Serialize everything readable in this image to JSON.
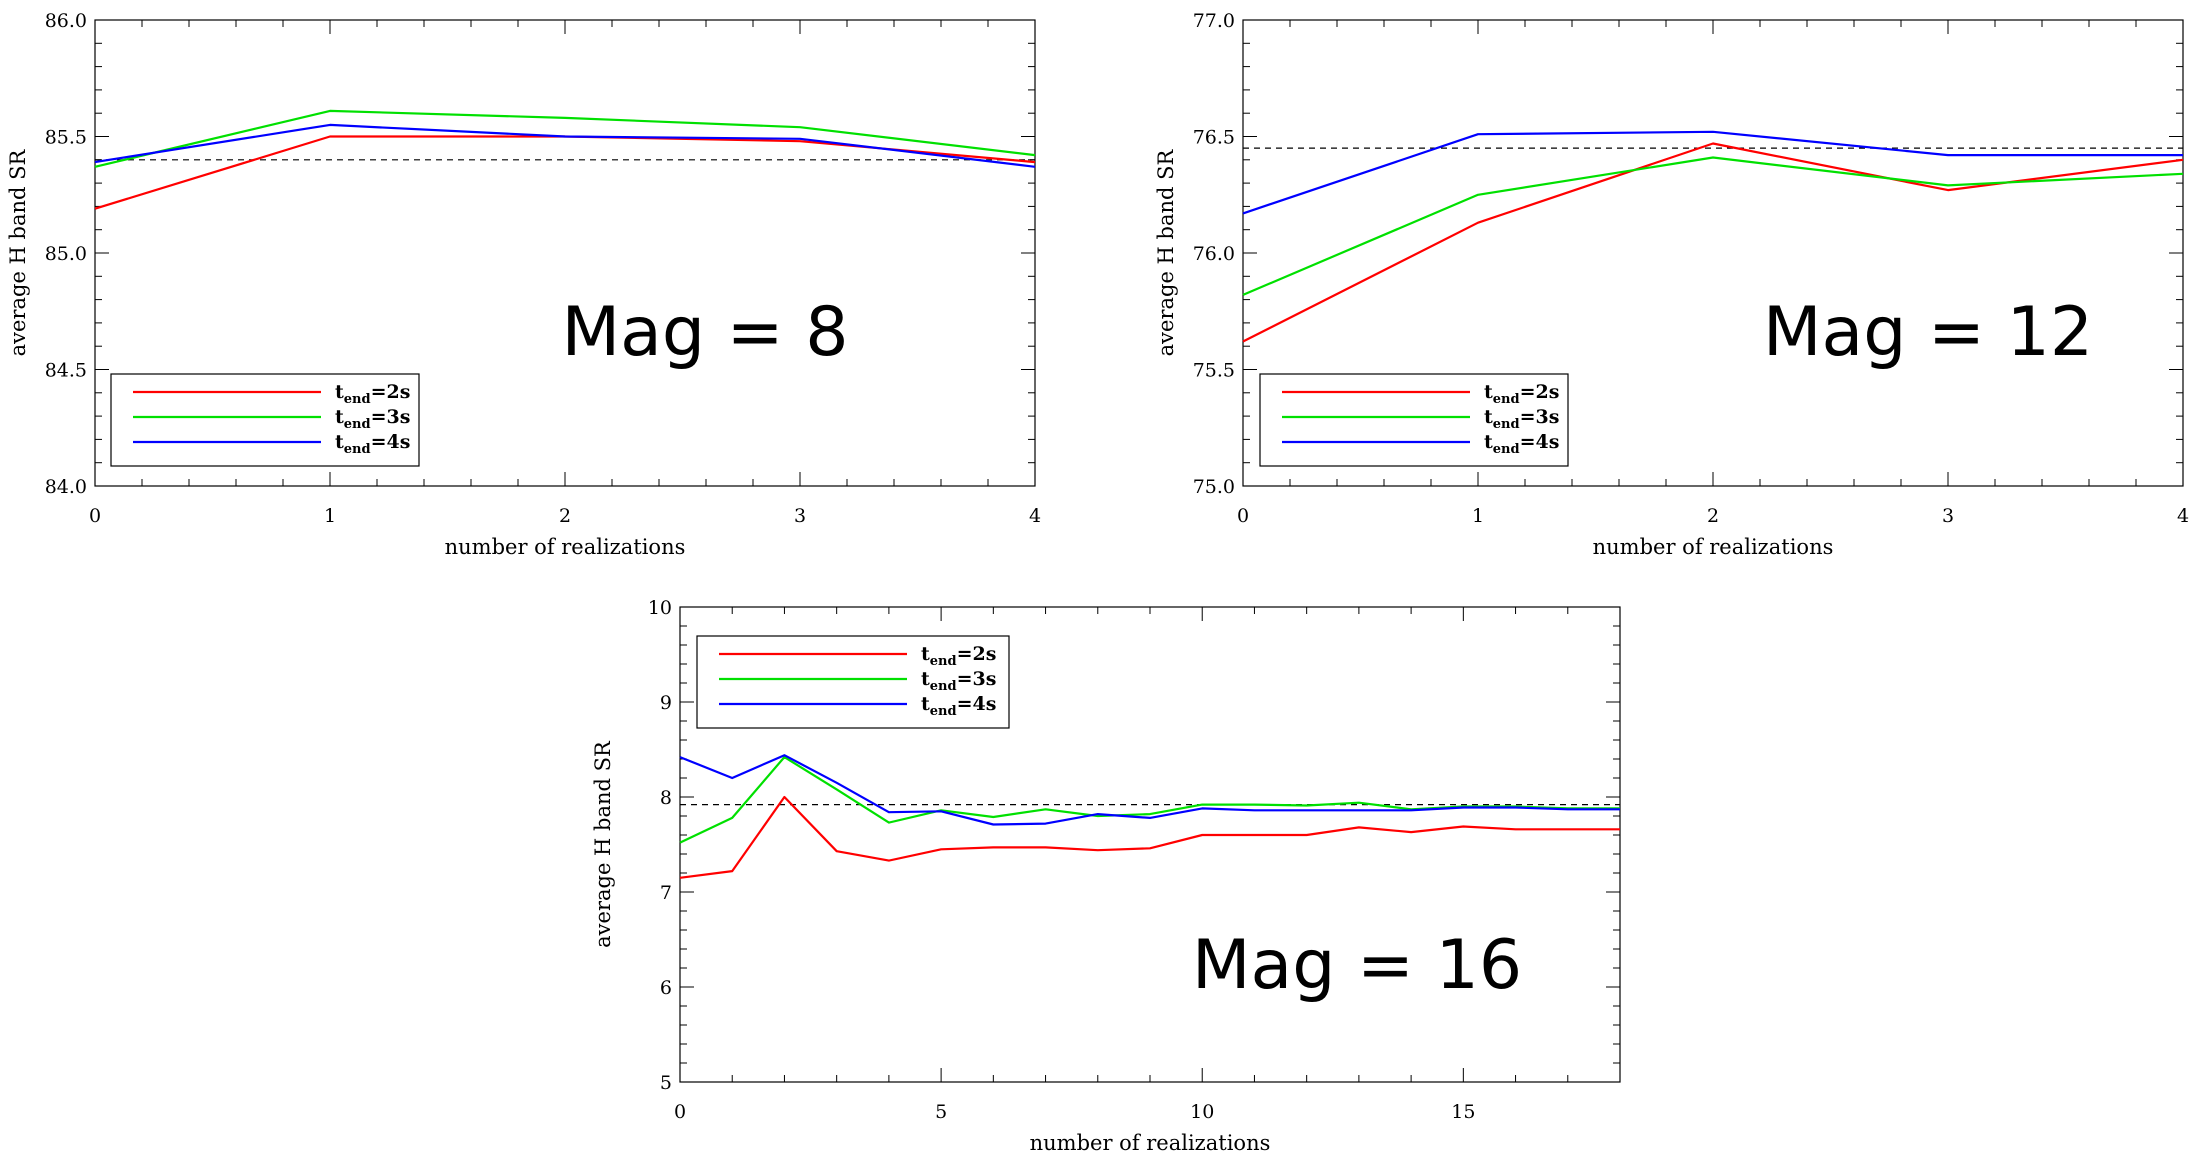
{
  "chart_data": [
    {
      "type": "line",
      "annotation": "Mag = 8",
      "xlabel": "number of realizations",
      "ylabel": "average H band SR",
      "xlim": [
        0,
        4
      ],
      "ylim": [
        84.0,
        86.0
      ],
      "x_ticks": [
        "0",
        "1",
        "2",
        "3",
        "4"
      ],
      "y_ticks": [
        "84.0",
        "84.5",
        "85.0",
        "85.5",
        "86.0"
      ],
      "reference_line": 85.4,
      "legend_position": "bottom-left",
      "series": [
        {
          "name": "t_end=2s",
          "color": "#ff0000",
          "x": [
            0,
            1,
            2,
            3,
            4
          ],
          "values": [
            85.19,
            85.5,
            85.5,
            85.48,
            85.39
          ]
        },
        {
          "name": "t_end=3s",
          "color": "#00e000",
          "x": [
            0,
            1,
            2,
            3,
            4
          ],
          "values": [
            85.37,
            85.61,
            85.58,
            85.54,
            85.42
          ]
        },
        {
          "name": "t_end=4s",
          "color": "#0000ff",
          "x": [
            0,
            1,
            2,
            3,
            4
          ],
          "values": [
            85.39,
            85.55,
            85.5,
            85.49,
            85.37
          ]
        }
      ]
    },
    {
      "type": "line",
      "annotation": "Mag = 12",
      "xlabel": "number of realizations",
      "ylabel": "average H band SR",
      "xlim": [
        0,
        4
      ],
      "ylim": [
        75.0,
        77.0
      ],
      "x_ticks": [
        "0",
        "1",
        "2",
        "3",
        "4"
      ],
      "y_ticks": [
        "75.0",
        "75.5",
        "76.0",
        "76.5",
        "77.0"
      ],
      "reference_line": 76.45,
      "legend_position": "bottom-left",
      "series": [
        {
          "name": "t_end=2s",
          "color": "#ff0000",
          "x": [
            0,
            1,
            2,
            3,
            4
          ],
          "values": [
            75.62,
            76.13,
            76.47,
            76.27,
            76.4
          ]
        },
        {
          "name": "t_end=3s",
          "color": "#00e000",
          "x": [
            0,
            1,
            2,
            3,
            4
          ],
          "values": [
            75.82,
            76.25,
            76.41,
            76.29,
            76.34
          ]
        },
        {
          "name": "t_end=4s",
          "color": "#0000ff",
          "x": [
            0,
            1,
            2,
            3,
            4
          ],
          "values": [
            76.17,
            76.51,
            76.52,
            76.42,
            76.42
          ]
        }
      ]
    },
    {
      "type": "line",
      "annotation": "Mag = 16",
      "xlabel": "number of realizations",
      "ylabel": "average H band SR",
      "xlim": [
        0,
        18
      ],
      "ylim": [
        5,
        10
      ],
      "x_ticks": [
        "0",
        "5",
        "10",
        "15"
      ],
      "x_tick_values": [
        0,
        5,
        10,
        15
      ],
      "y_ticks": [
        "5",
        "6",
        "7",
        "8",
        "9",
        "10"
      ],
      "reference_line": 7.92,
      "legend_position": "top-left",
      "series": [
        {
          "name": "t_end=2s",
          "color": "#ff0000",
          "x": [
            0,
            1,
            2,
            3,
            4,
            5,
            6,
            7,
            8,
            9,
            10,
            11,
            12,
            13,
            14,
            15,
            16,
            17,
            18
          ],
          "values": [
            7.15,
            7.22,
            8.0,
            7.43,
            7.33,
            7.45,
            7.47,
            7.47,
            7.44,
            7.46,
            7.6,
            7.6,
            7.6,
            7.68,
            7.63,
            7.69,
            7.66,
            7.66,
            7.66
          ]
        },
        {
          "name": "t_end=3s",
          "color": "#00e000",
          "x": [
            0,
            1,
            2,
            3,
            4,
            5,
            6,
            7,
            8,
            9,
            10,
            11,
            12,
            13,
            14,
            15,
            16,
            17,
            18
          ],
          "values": [
            7.52,
            7.78,
            8.42,
            8.08,
            7.73,
            7.86,
            7.79,
            7.87,
            7.8,
            7.82,
            7.92,
            7.92,
            7.91,
            7.94,
            7.87,
            7.9,
            7.9,
            7.88,
            7.88
          ]
        },
        {
          "name": "t_end=4s",
          "color": "#0000ff",
          "x": [
            0,
            1,
            2,
            3,
            4,
            5,
            6,
            7,
            8,
            9,
            10,
            11,
            12,
            13,
            14,
            15,
            16,
            17,
            18
          ],
          "values": [
            8.42,
            8.2,
            8.44,
            8.15,
            7.84,
            7.85,
            7.71,
            7.72,
            7.82,
            7.78,
            7.88,
            7.86,
            7.86,
            7.86,
            7.86,
            7.89,
            7.89,
            7.87,
            7.87
          ]
        }
      ]
    }
  ]
}
